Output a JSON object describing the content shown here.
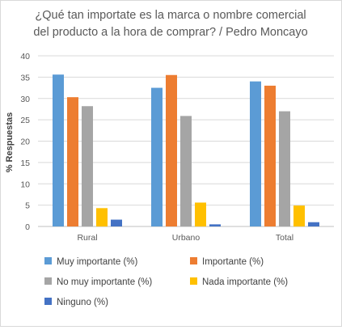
{
  "chart_data": {
    "type": "bar",
    "title_lines": [
      "¿Qué tan importate es la  marca o nombre comercial",
      "del producto a la hora de comprar? / Pedro Moncayo"
    ],
    "xlabel": "",
    "ylabel": "% Respuestas",
    "ylim": [
      0,
      40
    ],
    "yticks": [
      "0",
      "5",
      "10",
      "15",
      "20",
      "25",
      "30",
      "35",
      "40"
    ],
    "grid": true,
    "legend_position": "bottom",
    "categories": [
      "Rural",
      "Urbano",
      "Total"
    ],
    "series": [
      {
        "name": "Muy importante (%)",
        "color": "#5B9BD5",
        "values": [
          35.6,
          32.5,
          34.0
        ]
      },
      {
        "name": "Importante (%)",
        "color": "#ED7D31",
        "values": [
          30.3,
          35.5,
          33.0
        ]
      },
      {
        "name": "No muy importante (%)",
        "color": "#A5A5A5",
        "values": [
          28.2,
          25.9,
          27.0
        ]
      },
      {
        "name": "Nada importante (%)",
        "color": "#FFC000",
        "values": [
          4.3,
          5.6,
          4.9
        ]
      },
      {
        "name": "Ninguno (%)",
        "color": "#4472C4",
        "values": [
          1.6,
          0.5,
          1.0
        ]
      }
    ]
  }
}
